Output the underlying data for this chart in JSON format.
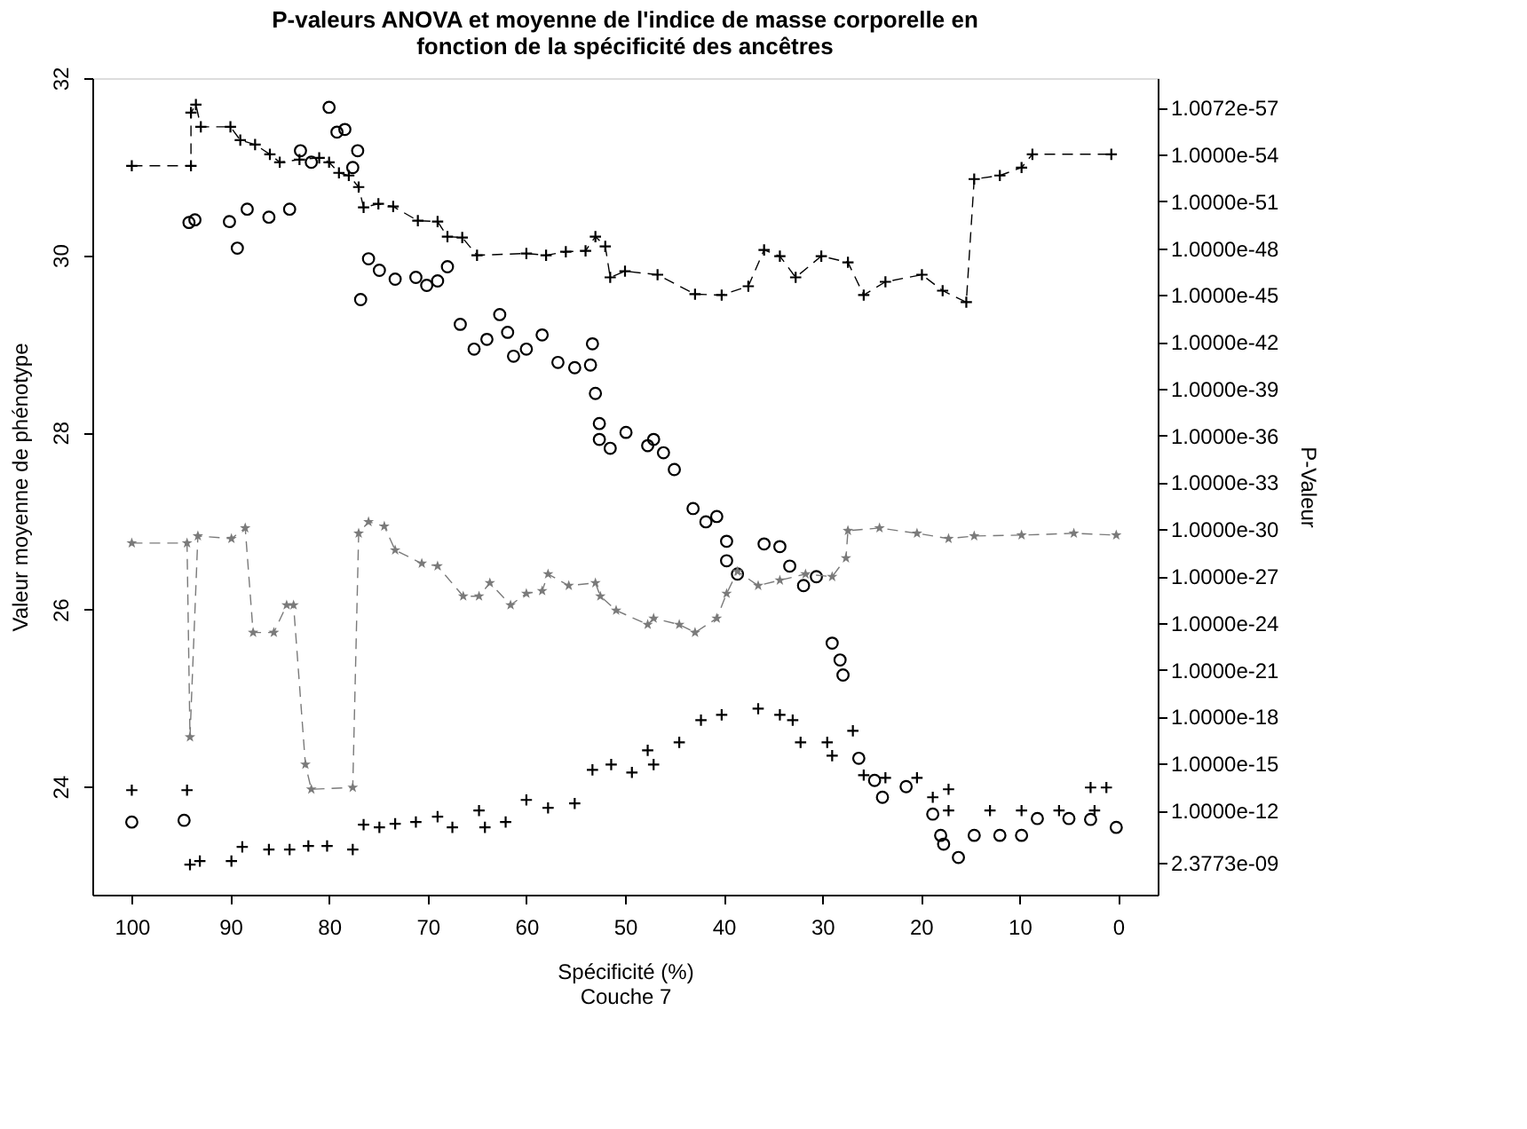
{
  "chart_data": {
    "type": "scatter",
    "title": "P-valeurs ANOVA et moyenne de l'indice de masse corporelle en fonction de la spécificité des ancêtres",
    "xlabel": "Spécificité (%)",
    "ylabel": "Valeur moyenne de phénotype",
    "y2label": "P-Valeur",
    "annotations": [
      "Couche 7"
    ],
    "xlim": [
      104,
      -4
    ],
    "xticks": [
      100,
      90,
      80,
      70,
      60,
      50,
      40,
      30,
      20,
      10,
      0
    ],
    "ylim": [
      22.78,
      32
    ],
    "yticks": [
      24,
      26,
      28,
      30,
      32
    ],
    "y2lim": [
      2.5e-07,
      1.3e-59
    ],
    "y2ticks": [
      {
        "value": 1.0072e-57,
        "label": "1.0072e-57"
      },
      {
        "value": 1e-54,
        "label": "1.0000e-54"
      },
      {
        "value": 1e-51,
        "label": "1.0000e-51"
      },
      {
        "value": 1e-48,
        "label": "1.0000e-48"
      },
      {
        "value": 1e-45,
        "label": "1.0000e-45"
      },
      {
        "value": 1e-42,
        "label": "1.0000e-42"
      },
      {
        "value": 1e-39,
        "label": "1.0000e-39"
      },
      {
        "value": 1e-36,
        "label": "1.0000e-36"
      },
      {
        "value": 1e-33,
        "label": "1.0000e-33"
      },
      {
        "value": 1e-30,
        "label": "1.0000e-30"
      },
      {
        "value": 1e-27,
        "label": "1.0000e-27"
      },
      {
        "value": 1e-24,
        "label": "1.0000e-24"
      },
      {
        "value": 1e-21,
        "label": "1.0000e-21"
      },
      {
        "value": 1e-18,
        "label": "1.0000e-18"
      },
      {
        "value": 1e-15,
        "label": "1.0000e-15"
      },
      {
        "value": 1e-12,
        "label": "1.0000e-12"
      },
      {
        "value": 2.3773e-09,
        "label": "2.3773e-09"
      }
    ],
    "log": "y2",
    "grid": false,
    "series": [
      {
        "type": "line",
        "marker": "cross",
        "line_style": "dashed",
        "color": "#000000",
        "x": [
          100,
          94,
          94,
          93.5,
          93,
          90,
          89,
          87.5,
          86,
          85,
          83,
          81,
          80,
          79,
          78,
          77,
          76.5,
          75,
          73.5,
          71,
          69,
          68,
          66.5,
          65,
          60,
          58,
          56,
          54,
          53,
          52,
          51.5,
          50,
          46.7,
          42.9,
          40.2,
          37.5,
          35.9,
          34.3,
          32.7,
          30.1,
          27.4,
          25.8,
          23.6,
          19.9,
          17.8,
          15.4,
          14.6,
          12.0,
          9.8,
          8.7,
          0.7
        ],
        "values": [
          31.01,
          31.01,
          31.61,
          31.7,
          31.45,
          31.45,
          31.3,
          31.25,
          31.14,
          31.05,
          31.08,
          31.1,
          31.05,
          30.93,
          30.9,
          30.77,
          30.54,
          30.58,
          30.55,
          30.39,
          30.38,
          30.21,
          30.2,
          30.0,
          30.02,
          30.0,
          30.04,
          30.05,
          30.21,
          30.1,
          29.75,
          29.82,
          29.78,
          29.56,
          29.55,
          29.65,
          30.06,
          29.99,
          29.75,
          29.99,
          29.92,
          29.55,
          29.7,
          29.78,
          29.6,
          29.47,
          30.86,
          30.9,
          30.99,
          31.14,
          31.14
        ]
      },
      {
        "type": "scatter",
        "marker": "circle",
        "color": "#000000",
        "x": [
          100,
          94.7,
          94.2,
          93.6,
          90.1,
          89.3,
          88.3,
          86.1,
          84.0,
          82.9,
          81.8,
          80.0,
          79.2,
          78.4,
          77.6,
          77.1,
          76.8,
          76.0,
          74.9,
          73.3,
          71.2,
          70.1,
          69.0,
          68.0,
          66.7,
          65.3,
          64.0,
          62.7,
          61.9,
          61.3,
          60.0,
          58.4,
          56.8,
          55.1,
          53.5,
          53.3,
          53.0,
          52.6,
          52.6,
          51.5,
          49.9,
          47.7,
          47.1,
          46.1,
          45.0,
          43.1,
          41.8,
          40.7,
          39.7,
          39.7,
          38.6,
          35.9,
          34.3,
          33.3,
          31.9,
          30.6,
          29.0,
          28.2,
          27.9,
          26.3,
          24.7,
          23.9,
          21.5,
          18.8,
          18.0,
          17.7,
          16.2,
          14.6,
          12.0,
          9.8,
          8.2,
          5.0,
          2.8,
          0.2
        ],
        "values": [
          23.6,
          23.62,
          30.37,
          30.4,
          30.38,
          30.08,
          30.52,
          30.43,
          30.52,
          31.18,
          31.05,
          31.67,
          31.39,
          31.42,
          30.99,
          31.18,
          29.5,
          29.96,
          29.83,
          29.73,
          29.75,
          29.66,
          29.71,
          29.87,
          29.22,
          28.94,
          29.05,
          29.33,
          29.13,
          28.86,
          28.94,
          29.1,
          28.79,
          28.73,
          28.76,
          29.0,
          28.44,
          28.1,
          27.92,
          27.82,
          28.0,
          27.85,
          27.92,
          27.77,
          27.58,
          27.14,
          26.99,
          27.05,
          26.77,
          26.55,
          26.4,
          26.74,
          26.71,
          26.49,
          26.27,
          26.37,
          25.62,
          25.43,
          25.26,
          24.32,
          24.07,
          23.88,
          24.0,
          23.69,
          23.45,
          23.35,
          23.2,
          23.45,
          23.45,
          23.45,
          23.64,
          23.64,
          23.63,
          23.54
        ]
      },
      {
        "type": "line",
        "marker": "star",
        "line_style": "dashed",
        "color": "#7a7a7a",
        "x": [
          100,
          94.4,
          94.1,
          93.3,
          89.9,
          88.5,
          87.7,
          85.6,
          84.3,
          83.6,
          82.4,
          81.8,
          77.6,
          77.0,
          76.0,
          74.4,
          73.3,
          70.6,
          69.0,
          66.4,
          64.8,
          63.7,
          61.6,
          60.0,
          58.4,
          57.8,
          55.7,
          53.0,
          52.5,
          50.9,
          47.7,
          47.1,
          44.5,
          42.9,
          40.7,
          39.7,
          38.6,
          36.5,
          34.3,
          31.7,
          29.0,
          27.6,
          27.4,
          24.2,
          20.4,
          17.2,
          14.6,
          9.8,
          4.5,
          0.2
        ],
        "values": [
          26.75,
          26.75,
          24.56,
          26.83,
          26.8,
          26.92,
          25.74,
          25.74,
          26.05,
          26.05,
          24.25,
          23.97,
          23.99,
          26.86,
          26.99,
          26.94,
          26.67,
          26.52,
          26.49,
          26.15,
          26.15,
          26.3,
          26.05,
          26.18,
          26.21,
          26.4,
          26.27,
          26.3,
          26.15,
          25.99,
          25.83,
          25.9,
          25.83,
          25.74,
          25.9,
          26.18,
          26.43,
          26.27,
          26.33,
          26.4,
          26.37,
          26.58,
          26.89,
          26.92,
          26.86,
          26.8,
          26.83,
          26.84,
          26.86,
          26.84
        ]
      },
      {
        "type": "scatter",
        "marker": "cross",
        "color": "#000000",
        "x": [
          100,
          94.4,
          94.1,
          93.1,
          89.9,
          88.8,
          86.1,
          84.0,
          82.1,
          80.2,
          77.6,
          76.5,
          74.9,
          73.3,
          71.2,
          69.0,
          67.5,
          64.8,
          64.2,
          62.1,
          60.0,
          57.8,
          55.1,
          53.3,
          51.4,
          49.3,
          47.7,
          47.1,
          44.5,
          42.3,
          40.2,
          36.5,
          34.3,
          33.0,
          32.2,
          29.5,
          29.0,
          26.9,
          25.8,
          23.6,
          20.4,
          18.8,
          17.2,
          17.2,
          13.0,
          9.8,
          6.0,
          2.4,
          2.8,
          1.2
        ],
        "values": [
          23.96,
          23.96,
          23.12,
          23.16,
          23.16,
          23.32,
          23.29,
          23.29,
          23.33,
          23.33,
          23.29,
          23.57,
          23.54,
          23.58,
          23.6,
          23.66,
          23.54,
          23.73,
          23.54,
          23.6,
          23.85,
          23.76,
          23.81,
          24.19,
          24.25,
          24.16,
          24.41,
          24.25,
          24.5,
          24.75,
          24.81,
          24.88,
          24.81,
          24.75,
          24.5,
          24.5,
          24.35,
          24.63,
          24.13,
          24.1,
          24.1,
          23.88,
          23.97,
          23.73,
          23.73,
          23.73,
          23.73,
          23.73,
          23.99,
          23.99
        ]
      }
    ]
  }
}
